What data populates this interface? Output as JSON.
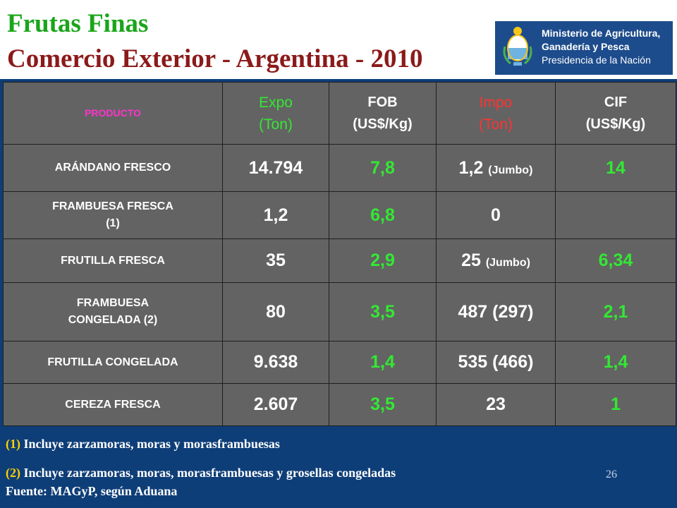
{
  "title": {
    "line1": "Frutas Finas",
    "line2": "Comercio Exterior - Argentina - 2010"
  },
  "logo": {
    "line1": "Ministerio de Agricultura,",
    "line2": "Ganadería y Pesca",
    "line3": "Presidencia de la Nación"
  },
  "table": {
    "headers": {
      "producto": "PRODUCTO",
      "expo_1": "Expo",
      "expo_2": "(Ton)",
      "fob_1": "FOB",
      "fob_2": "(US$/Kg)",
      "impo_1": "Impo",
      "impo_2": "(Ton)",
      "cif_1": "CIF",
      "cif_2": "(US$/Kg)"
    },
    "rows": [
      {
        "p1": "ARÁNDANO FRESCO",
        "p2": "",
        "expo": "14.794",
        "fob": "7,8",
        "impo": "1,2",
        "impo_sub": "(Jumbo)",
        "cif": "14"
      },
      {
        "p1": "FRAMBUESA FRESCA",
        "p2": "(1)",
        "expo": "1,2",
        "fob": "6,8",
        "impo": "0",
        "impo_sub": "",
        "cif": ""
      },
      {
        "p1": "FRUTILLA FRESCA",
        "p2": "",
        "expo": "35",
        "fob": "2,9",
        "impo": "25",
        "impo_sub": "(Jumbo)",
        "cif": "6,34"
      },
      {
        "p1": "FRAMBUESA",
        "p2": "CONGELADA (2)",
        "expo": "80",
        "fob": "3,5",
        "impo": "487",
        "impo_sub": "(297)",
        "cif": "2,1"
      },
      {
        "p1": "FRUTILLA CONGELADA",
        "p2": "",
        "expo": "9.638",
        "fob": "1,4",
        "impo": "535",
        "impo_sub": "(466)",
        "cif": "1,4"
      },
      {
        "p1": "CEREZA FRESCA",
        "p2": "",
        "expo": "2.607",
        "fob": "3,5",
        "impo": "23",
        "impo_sub": "",
        "cif": "1"
      }
    ]
  },
  "notes": {
    "n1_num": "(1)",
    "n1_text": " Incluye zarzamoras, moras y morasframbuesas",
    "n2_num": "(2)",
    "n2_text": " Incluye zarzamoras, moras, morasframbuesas y grosellas congeladas",
    "source": "Fuente: MAGyP, según Aduana"
  },
  "page_number": "26",
  "colors": {
    "title_green": "#1aa51a",
    "title_red": "#8b1a1a",
    "panel_blue": "#0e3e78",
    "table_gray": "#636363",
    "value_green": "#33e833",
    "impo_red": "#ff3333",
    "producto_magenta": "#ff33cc"
  }
}
